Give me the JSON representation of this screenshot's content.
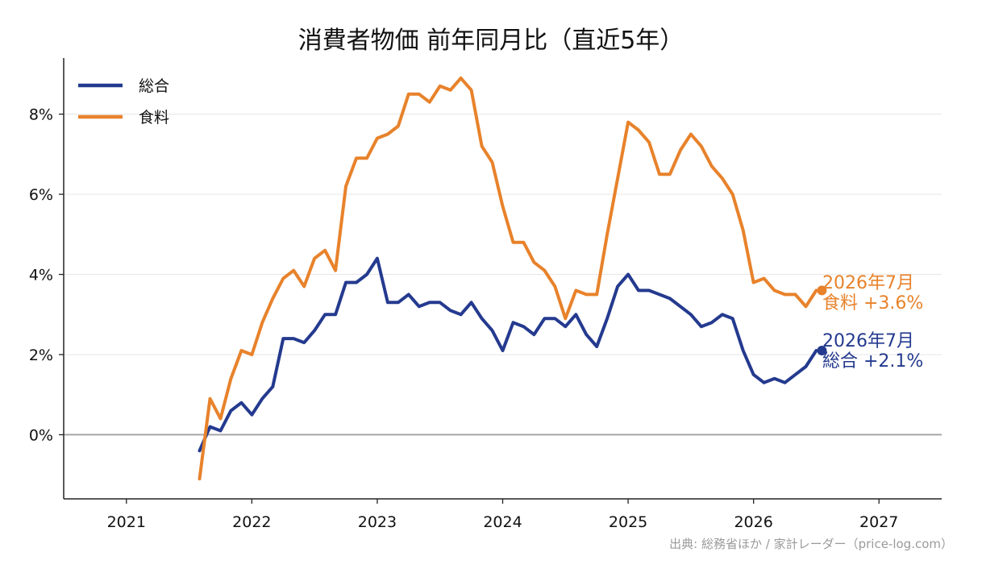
{
  "chart_data": {
    "type": "line",
    "title": "消費者物価 前年同月比（直近5年）",
    "source": "出典: 総務省ほか / 家計レーダー（price-log.com）",
    "x_ticks": [
      "2021",
      "2022",
      "2023",
      "2024",
      "2025",
      "2026",
      "2027"
    ],
    "xlim": [
      "2020-07",
      "2027-07"
    ],
    "ylim": [
      -1.6,
      9.4
    ],
    "y_ticks": [
      0,
      2,
      4,
      6,
      8
    ],
    "y_tick_labels": [
      "0%",
      "2%",
      "4%",
      "6%",
      "8%"
    ],
    "grid": "horizontal",
    "legend_position": "top-left",
    "x": [
      "2021-08",
      "2021-09",
      "2021-10",
      "2021-11",
      "2021-12",
      "2022-01",
      "2022-02",
      "2022-03",
      "2022-04",
      "2022-05",
      "2022-06",
      "2022-07",
      "2022-08",
      "2022-09",
      "2022-10",
      "2022-11",
      "2022-12",
      "2023-01",
      "2023-02",
      "2023-03",
      "2023-04",
      "2023-05",
      "2023-06",
      "2023-07",
      "2023-08",
      "2023-09",
      "2023-10",
      "2023-11",
      "2023-12",
      "2024-01",
      "2024-02",
      "2024-03",
      "2024-04",
      "2024-05",
      "2024-06",
      "2024-07",
      "2024-08",
      "2024-09",
      "2024-10",
      "2024-11",
      "2024-12",
      "2025-01",
      "2025-02",
      "2025-03",
      "2025-04",
      "2025-05",
      "2025-06",
      "2025-07",
      "2025-08",
      "2025-09",
      "2025-10",
      "2025-11",
      "2025-12",
      "2026-01",
      "2026-02",
      "2026-03",
      "2026-04",
      "2026-05",
      "2026-06",
      "2026-07"
    ],
    "series": [
      {
        "name": "総合",
        "color": "#243a8f",
        "values": [
          -0.4,
          0.2,
          0.1,
          0.6,
          0.8,
          0.5,
          0.9,
          1.2,
          2.4,
          2.4,
          2.3,
          2.6,
          3.0,
          3.0,
          3.8,
          3.8,
          4.0,
          4.4,
          3.3,
          3.3,
          3.5,
          3.2,
          3.3,
          3.3,
          3.1,
          3.0,
          3.3,
          2.9,
          2.6,
          2.1,
          2.8,
          2.7,
          2.5,
          2.9,
          2.9,
          2.7,
          3.0,
          2.5,
          2.2,
          2.9,
          3.7,
          4.0,
          3.6,
          3.6,
          3.5,
          3.4,
          3.2,
          3.0,
          2.7,
          2.8,
          3.0,
          2.9,
          2.1,
          1.5,
          1.3,
          1.4,
          1.3,
          1.5,
          1.7,
          2.1
        ]
      },
      {
        "name": "食料",
        "color": "#e8822b",
        "values": [
          -1.1,
          0.9,
          0.4,
          1.4,
          2.1,
          2.0,
          2.8,
          3.4,
          3.9,
          4.1,
          3.7,
          4.4,
          4.6,
          4.1,
          6.2,
          6.9,
          6.9,
          7.4,
          7.5,
          7.7,
          8.5,
          8.5,
          8.3,
          8.7,
          8.6,
          8.9,
          8.6,
          7.2,
          6.8,
          5.7,
          4.8,
          4.8,
          4.3,
          4.1,
          3.7,
          2.9,
          3.6,
          3.5,
          3.5,
          5.0,
          6.4,
          7.8,
          7.6,
          7.3,
          6.5,
          6.5,
          7.1,
          7.5,
          7.2,
          6.7,
          6.4,
          6.0,
          5.1,
          3.8,
          3.9,
          3.6,
          3.5,
          3.5,
          3.2,
          3.6
        ]
      }
    ],
    "annotations": [
      {
        "series": "食料",
        "date_label": "2026年7月",
        "value_label": "食料 +3.6%"
      },
      {
        "series": "総合",
        "date_label": "2026年7月",
        "value_label": "総合 +2.1%"
      }
    ]
  }
}
